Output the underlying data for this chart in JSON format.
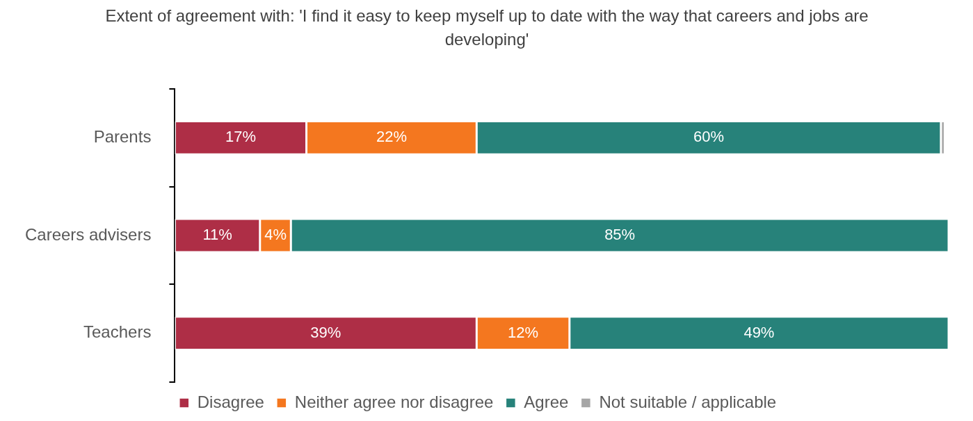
{
  "chart_data": {
    "type": "bar",
    "orientation": "horizontal",
    "stacked": true,
    "title": "Extent of agreement with: 'I find it easy to keep myself up to date with the way that careers and jobs are developing'",
    "categories": [
      "Parents",
      "Careers advisers",
      "Teachers"
    ],
    "xlim": [
      0,
      100
    ],
    "tick_labels": "y",
    "grid": false,
    "legend": "bottom",
    "series": [
      {
        "name": "Disagree",
        "color": "#ae2e46",
        "values": [
          17,
          11,
          39
        ],
        "value_labels": [
          "17%",
          "11%",
          "39%"
        ]
      },
      {
        "name": "Neither agree nor disagree",
        "color": "#f4771f",
        "values": [
          22,
          4,
          12
        ],
        "value_labels": [
          "22%",
          "4%",
          "12%"
        ]
      },
      {
        "name": "Agree",
        "color": "#27827a",
        "values": [
          60,
          85,
          49
        ],
        "value_labels": [
          "60%",
          "85%",
          "49%"
        ]
      },
      {
        "name": "Not suitable / applicable",
        "color": "#a6a6a6",
        "values": [
          0.5,
          null,
          null
        ],
        "value_labels": [
          null,
          null,
          null
        ]
      }
    ]
  }
}
